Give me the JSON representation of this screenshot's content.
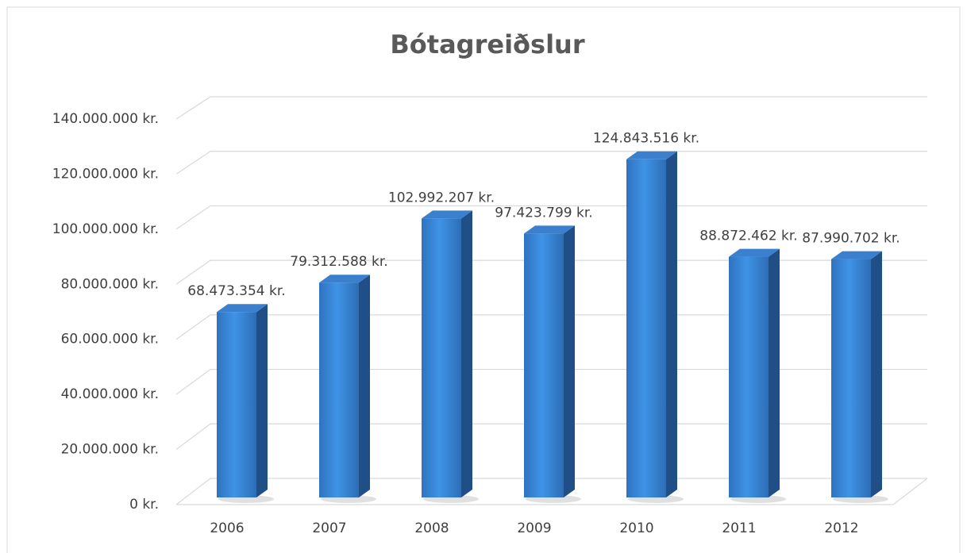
{
  "chart_data": {
    "type": "bar3d",
    "title": "Bótagreiðslur",
    "categories": [
      "2006",
      "2007",
      "2008",
      "2009",
      "2010",
      "2011",
      "2012"
    ],
    "values": [
      68473354,
      79312588,
      102992207,
      97423799,
      124843516,
      88872462,
      87990702
    ],
    "value_labels": [
      "68.473.354 kr.",
      "79.312.588 kr.",
      "102.992.207 kr.",
      "97.423.799 kr.",
      "124.843.516 kr.",
      "88.872.462 kr.",
      "87.990.702 kr."
    ],
    "color": "#3a86d8",
    "ylim": [
      0,
      140000000
    ],
    "yticks": [
      {
        "value": 0,
        "label": "0 kr."
      },
      {
        "value": 20000000,
        "label": "20.000.000 kr."
      },
      {
        "value": 40000000,
        "label": "40.000.000 kr."
      },
      {
        "value": 60000000,
        "label": "60.000.000 kr."
      },
      {
        "value": 80000000,
        "label": "80.000.000 kr."
      },
      {
        "value": 100000000,
        "label": "100.000.000 kr."
      },
      {
        "value": 120000000,
        "label": "120.000.000 kr."
      },
      {
        "value": 140000000,
        "label": "140.000.000 kr."
      }
    ],
    "grid": true
  }
}
